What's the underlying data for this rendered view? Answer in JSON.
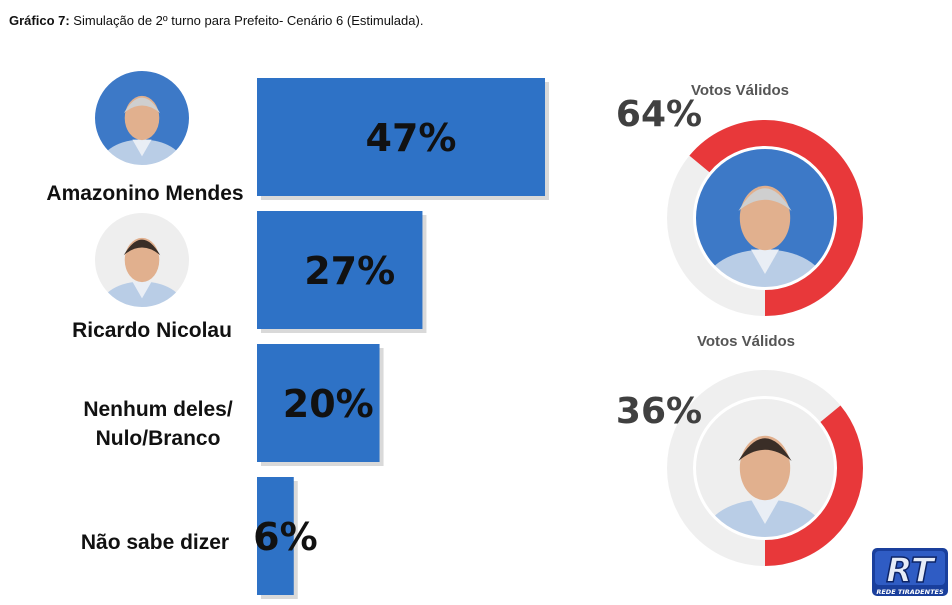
{
  "title": {
    "prefix": "Gráfico 7:",
    "text": " Simulação de 2º turno para Prefeito- Cenário 6 (Estimulada)."
  },
  "chart_data": [
    {
      "type": "bar",
      "orientation": "horizontal",
      "categories": [
        "Amazonino Mendes",
        "Ricardo Nicolau",
        "Nenhum deles/ Nulo/Branco",
        "Não sabe dizer"
      ],
      "category_lines": [
        [
          "Amazonino Mendes"
        ],
        [
          "Ricardo Nicolau"
        ],
        [
          "Nenhum deles/",
          "Nulo/Branco"
        ],
        [
          "Não sabe dizer"
        ]
      ],
      "values": [
        47,
        27,
        20,
        6
      ],
      "labels": [
        "47%",
        "27%",
        "20%",
        "6%"
      ],
      "unit": "%",
      "bar_color": "#2e72c6",
      "xlim": [
        0,
        50
      ],
      "grid": false,
      "legend": "none"
    },
    {
      "type": "pie",
      "style": "donut",
      "title": "Votos Válidos",
      "candidate": "Amazonino Mendes",
      "value": 64,
      "label": "64%",
      "colors": [
        "#e8383a",
        "#efefef"
      ]
    },
    {
      "type": "pie",
      "style": "donut",
      "title": "Votos Válidos",
      "candidate": "Ricardo Nicolau",
      "value": 36,
      "label": "36%",
      "colors": [
        "#e8383a",
        "#efefef"
      ]
    }
  ],
  "logo": {
    "mark": "RT",
    "caption": "REDE TIRADENTES",
    "colors": [
      "#1a3f9c",
      "#cfd8ea"
    ]
  },
  "icons": [
    "person-photo-icon"
  ]
}
